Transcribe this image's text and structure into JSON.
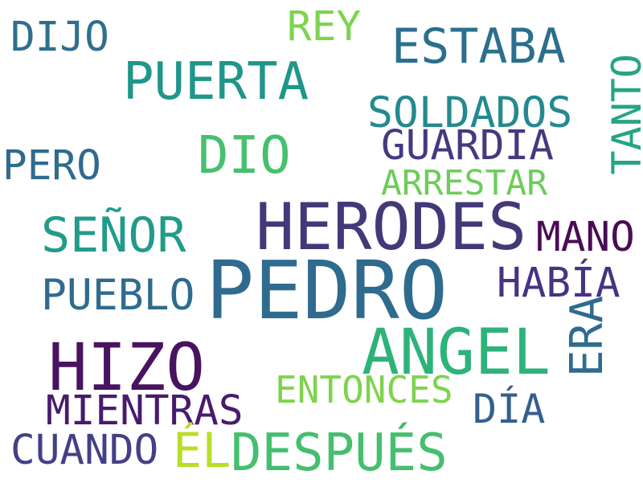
{
  "words": [
    {
      "text": "PEDRO",
      "color": "#2f6b8e"
    },
    {
      "text": "HERODES",
      "color": "#433878"
    },
    {
      "text": "ANGEL",
      "color": "#2db37a"
    },
    {
      "text": "HIZO",
      "color": "#48135f"
    },
    {
      "text": "PUERTA",
      "color": "#20968a"
    },
    {
      "text": "DESPUÉS",
      "color": "#45bf6f"
    },
    {
      "text": "DIO",
      "color": "#46c06e"
    },
    {
      "text": "ESTABA",
      "color": "#2b6f8e"
    },
    {
      "text": "SEÑOR",
      "color": "#229b89"
    },
    {
      "text": "ERA",
      "color": "#2f6b8e"
    },
    {
      "text": "MIENTRAS",
      "color": "#481b6d"
    },
    {
      "text": "HABÍA",
      "color": "#463382"
    },
    {
      "text": "SOLDADOS",
      "color": "#238a8d"
    },
    {
      "text": "GUARDIA",
      "color": "#433a7f"
    },
    {
      "text": "TANTO",
      "color": "#25a584"
    },
    {
      "text": "MANO",
      "color": "#4a0c55"
    },
    {
      "text": "PUEBLO",
      "color": "#2e6c8e"
    },
    {
      "text": "CUANDO",
      "color": "#424086"
    },
    {
      "text": "DÍA",
      "color": "#35608d"
    },
    {
      "text": "ENTONCES",
      "color": "#7fd34e"
    },
    {
      "text": "ARRESTAR",
      "color": "#6ccd59"
    },
    {
      "text": "REY",
      "color": "#7ed34f"
    },
    {
      "text": "DIJO",
      "color": "#2e6f8e"
    },
    {
      "text": "PERO",
      "color": "#2f6b8e"
    },
    {
      "text": "ÉL",
      "color": "#b8de29"
    }
  ]
}
